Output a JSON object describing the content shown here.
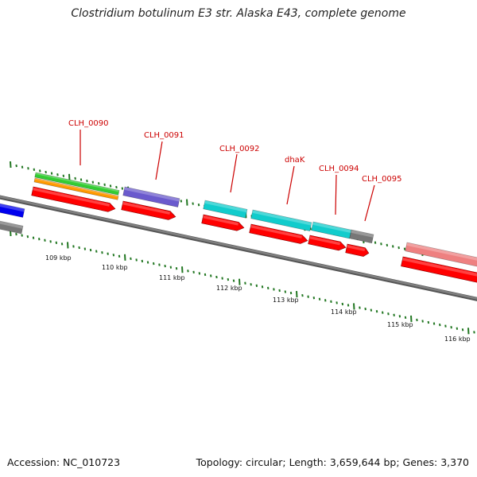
{
  "title": "Clostridium botulinum E3 str. Alaska E43, complete genome",
  "footer": {
    "accession": "Accession: NC_010723",
    "topology": "Topology: circular; Length: 3,659,644 bp; Genes: 3,370"
  },
  "scale_labels": [
    "109 kbp",
    "110 kbp",
    "111 kbp",
    "112 kbp",
    "113 kbp",
    "114 kbp",
    "115 kbp",
    "116 kbp"
  ],
  "gene_labels": [
    "CLH_0090",
    "CLH_0091",
    "CLH_0092",
    "dhaK",
    "CLH_0094",
    "CLH_0095"
  ],
  "colors": {
    "cds": "#ff0000",
    "green": "#33cc33",
    "orange": "#ff9900",
    "purple": "#6a5acd",
    "cyan": "#11cccc",
    "grey": "#777777",
    "blue": "#0000ee",
    "pink": "#ee8080",
    "tick": "#227722",
    "backbone": "#808080"
  }
}
